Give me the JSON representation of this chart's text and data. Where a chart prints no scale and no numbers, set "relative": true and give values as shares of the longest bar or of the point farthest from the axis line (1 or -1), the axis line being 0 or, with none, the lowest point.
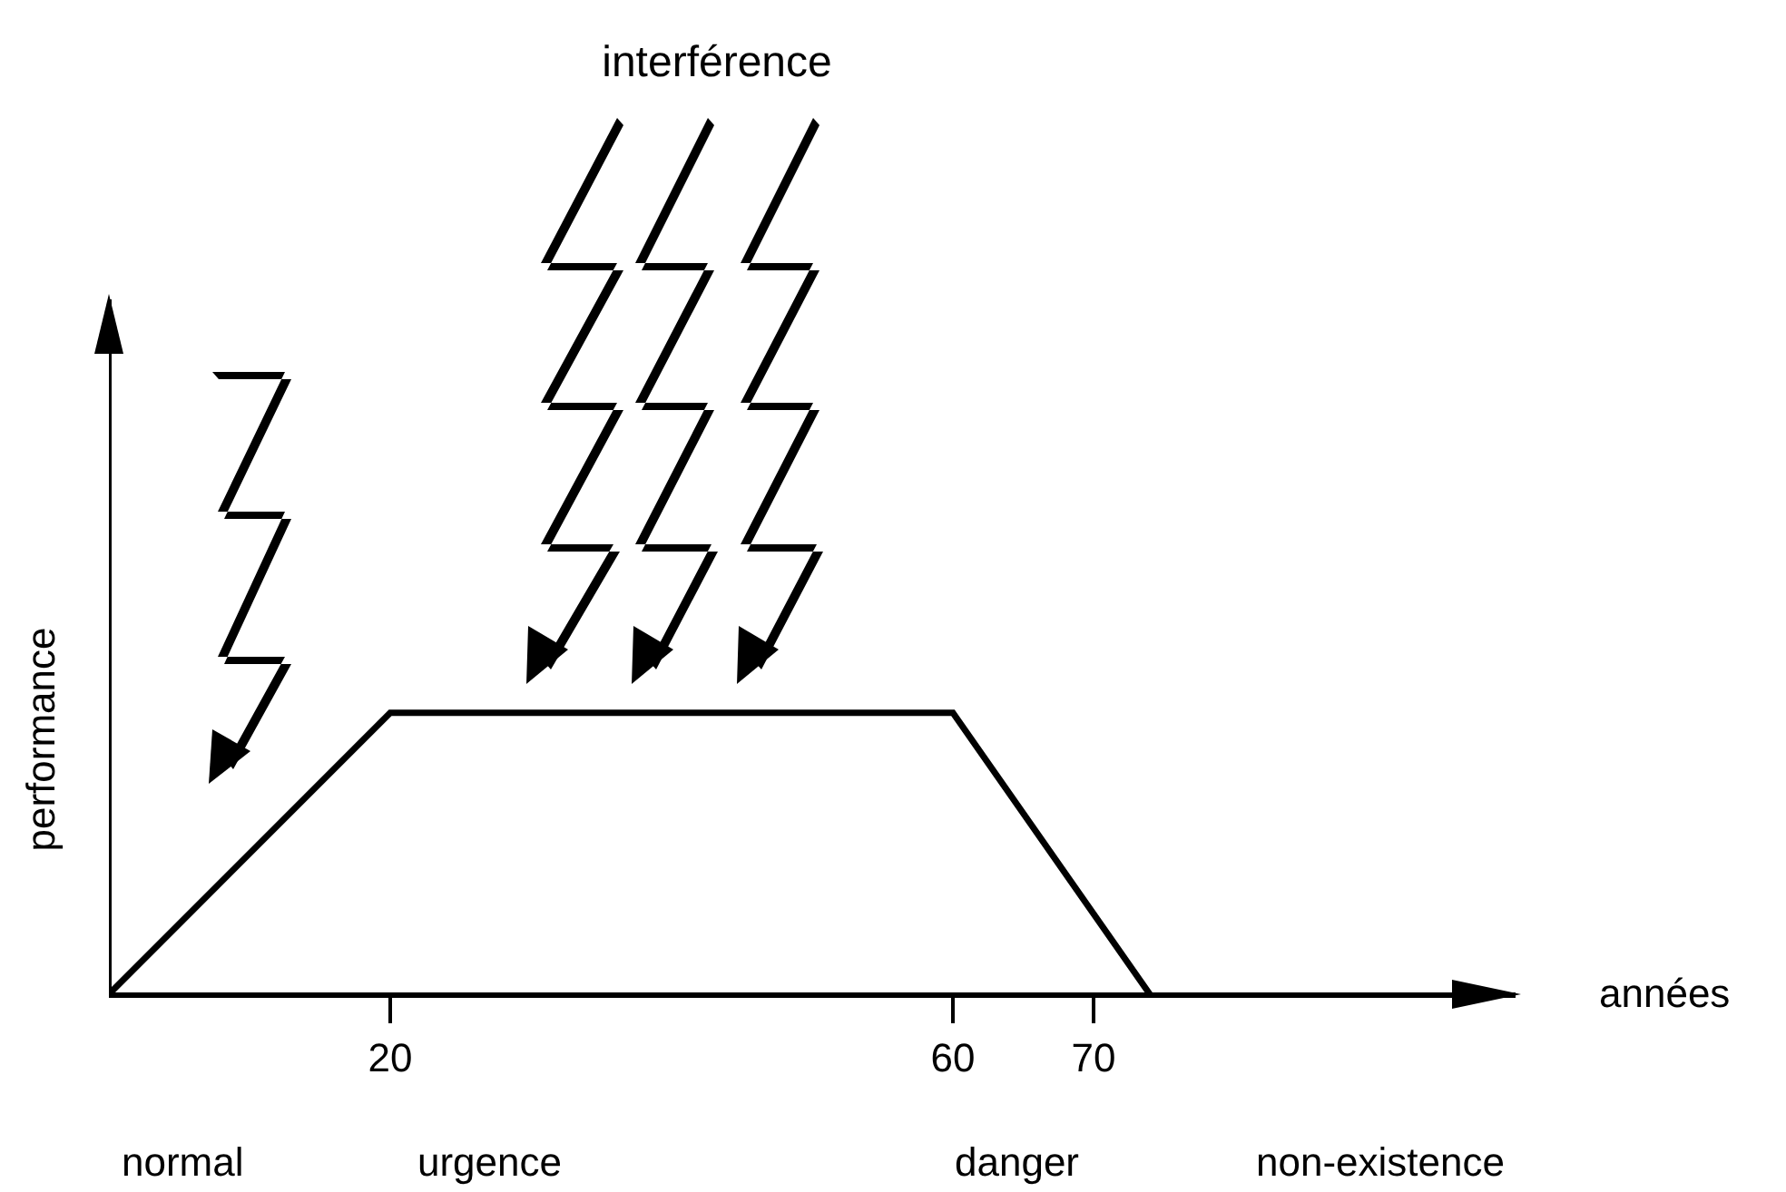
{
  "chart_data": {
    "type": "line",
    "title": "interférence",
    "xlabel": "années",
    "ylabel": "performance",
    "relative": true,
    "x": [
      0,
      20,
      60,
      74
    ],
    "series": [
      {
        "color": "#000000",
        "values": [
          0,
          1,
          1,
          0
        ]
      }
    ],
    "xlim": [
      0,
      100
    ],
    "xticks": [
      20,
      60,
      70
    ],
    "annotations": [
      "normal",
      "urgence",
      "danger",
      "non-existence"
    ],
    "grid": false,
    "marker": "none",
    "line_style": "solid"
  }
}
